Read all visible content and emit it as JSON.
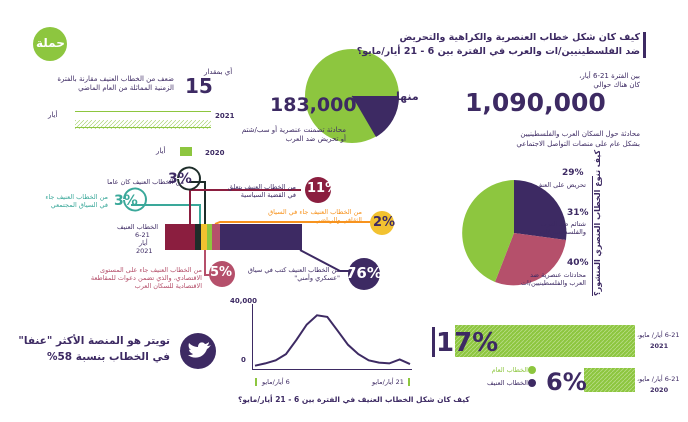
{
  "header": {
    "title_line1": "كيف كان شكل خطاب العنصرية والكراهية والتحريض",
    "title_line2": "ضد الفلسطينيين/ات والعرب في الفترة بين 6 - 21 أيار/مايو؟"
  },
  "logo": {
    "text": "حملة"
  },
  "volume": {
    "total": "1,090,000",
    "total_caption_line1": "بين الفترة 21-6 أيار،",
    "total_caption_line2": "كان هناك حوالي",
    "total_desc_line1": "محادثة حول السكان العرب والفلسطينيين",
    "total_desc_line2": "بشكل عام على منصات التواصل الاجتماعي",
    "subset": "183,000",
    "subset_prefix": "منها",
    "subset_desc_line1": "محادثة تضمنت عنصرية أو سب/شتم",
    "subset_desc_line2": "أو تحريض ضد العرب"
  },
  "comparison": {
    "multiplier": "15",
    "multiplier_prefix": "أي بمقدار",
    "desc_line1": "ضعف من الخطاب العنيف مقارنة بالفترة",
    "desc_line2": "الزمنية المماثلة من العام الماضي",
    "year_2021": "2021",
    "year_2020": "2020",
    "month_label": "أيار"
  },
  "categories": {
    "cat1": {
      "pct": "3%",
      "text": "من الخطاب العنيف كان عاما"
    },
    "cat2": {
      "pct": "3%",
      "text_line1": "من الخطاب العنيف جاء",
      "text_line2": "في السياق المجتمعي"
    },
    "cat3": {
      "pct": "11%",
      "text_line1": "من الخطاب العنيف يتعلق",
      "text_line2": "في القضية السياسية"
    },
    "cat4": {
      "pct": "2%",
      "text_line1": "من الخطاب العنيف جاء في السياق",
      "text_line2": "الثقافي والرياضي"
    },
    "cat5": {
      "pct": "5%",
      "text_line1": "من الخطاب العنيف جاء على المستوى",
      "text_line2": "الاقتصادي، والذي تضمن دعوات للمقاطعة",
      "text_line3": "الاقتصادية للسكان العرب"
    },
    "cat6": {
      "pct": "76%",
      "text_line1": "من الخطاب العنيف كتب في سياق",
      "text_line2": "\"عسكري وأمني\""
    },
    "bar_label_line1": "الخطاب العنيف",
    "bar_label_line2": "6-21",
    "bar_label_line3": "أيار",
    "bar_label_line4": "2021"
  },
  "pie": {
    "title": "كيف تنوع الخطاب العنصري المنشور؟",
    "slices": [
      {
        "pct": "29%",
        "label_line1": "تحريض على العنف",
        "label_line2": ""
      },
      {
        "pct": "31%",
        "label_line1": "شتائم ضد العرب",
        "label_line2": "والفلسطينيين/ات"
      },
      {
        "pct": "40%",
        "label_line1": "محادثات عنصرية ضد",
        "label_line2": "العرب والفلسطينيين/ات"
      }
    ]
  },
  "twitter": {
    "line1": "تويتر هو المنصة الأكثر \"عنفا\"",
    "line2": "في الخطاب بنسبة 58%"
  },
  "timeline": {
    "ymax_label": "40,000",
    "ymin_label": "0",
    "start_label": "6 أيار/مايو",
    "end_label": "21 أيار/مايو",
    "caption": "كيف كان شكل الخطاب العنيف في الفترة بين 6 - 21 أيار/مايو؟"
  },
  "share": {
    "pct_2021": "17%",
    "label_2021_line1": "6-21 أيار/ مايو،",
    "label_2021_line2": "2021",
    "pct_2020": "6%",
    "label_2020_line1": "6-21 أيار/ مايو،",
    "label_2020_line2": "2020",
    "legend_general": "الخطاب العام",
    "legend_violent": "الخطاب العنيف"
  },
  "colors": {
    "purple": "#3d2a63",
    "green": "#8dc63f",
    "crimson": "#8b1e3f",
    "rose": "#b5506b",
    "teal": "#3aa89a",
    "orange": "#f7931e",
    "yellow": "#f2c230",
    "gray": "#bdbdbd"
  },
  "chart_data": [
    {
      "type": "bar",
      "title": "",
      "categories": [
        "2021",
        "2020"
      ],
      "values": [
        15,
        1
      ],
      "note": "15x"
    },
    {
      "type": "bar",
      "title": "",
      "categories": [
        "3%",
        "3%",
        "11%",
        "2%",
        "5%",
        "76%"
      ],
      "values": [
        3,
        3,
        11,
        2,
        5,
        76
      ]
    },
    {
      "type": "pie",
      "title": "كيف تنوع الخطاب العنصري المنشور؟",
      "categories": [
        "تحريض على العنف",
        "شتائم ضد العرب والفلسطينيين/ات",
        "محادثات عنصرية ضد العرب والفلسطينيين/ات"
      ],
      "values": [
        29,
        31,
        40
      ]
    },
    {
      "type": "line",
      "title": "",
      "ylim": [
        0,
        40000
      ],
      "x": [
        "6",
        "7",
        "8",
        "9",
        "10",
        "11",
        "12",
        "13",
        "14",
        "15",
        "16",
        "17",
        "18",
        "19",
        "20",
        "21"
      ],
      "values": [
        1500,
        3000,
        5000,
        9000,
        18000,
        28000,
        34000,
        33000,
        24000,
        15000,
        9000,
        5000,
        3500,
        3000,
        5500,
        2500
      ]
    },
    {
      "type": "bar",
      "title": "",
      "categories": [
        "2021",
        "2020"
      ],
      "values": [
        17,
        6
      ]
    }
  ]
}
